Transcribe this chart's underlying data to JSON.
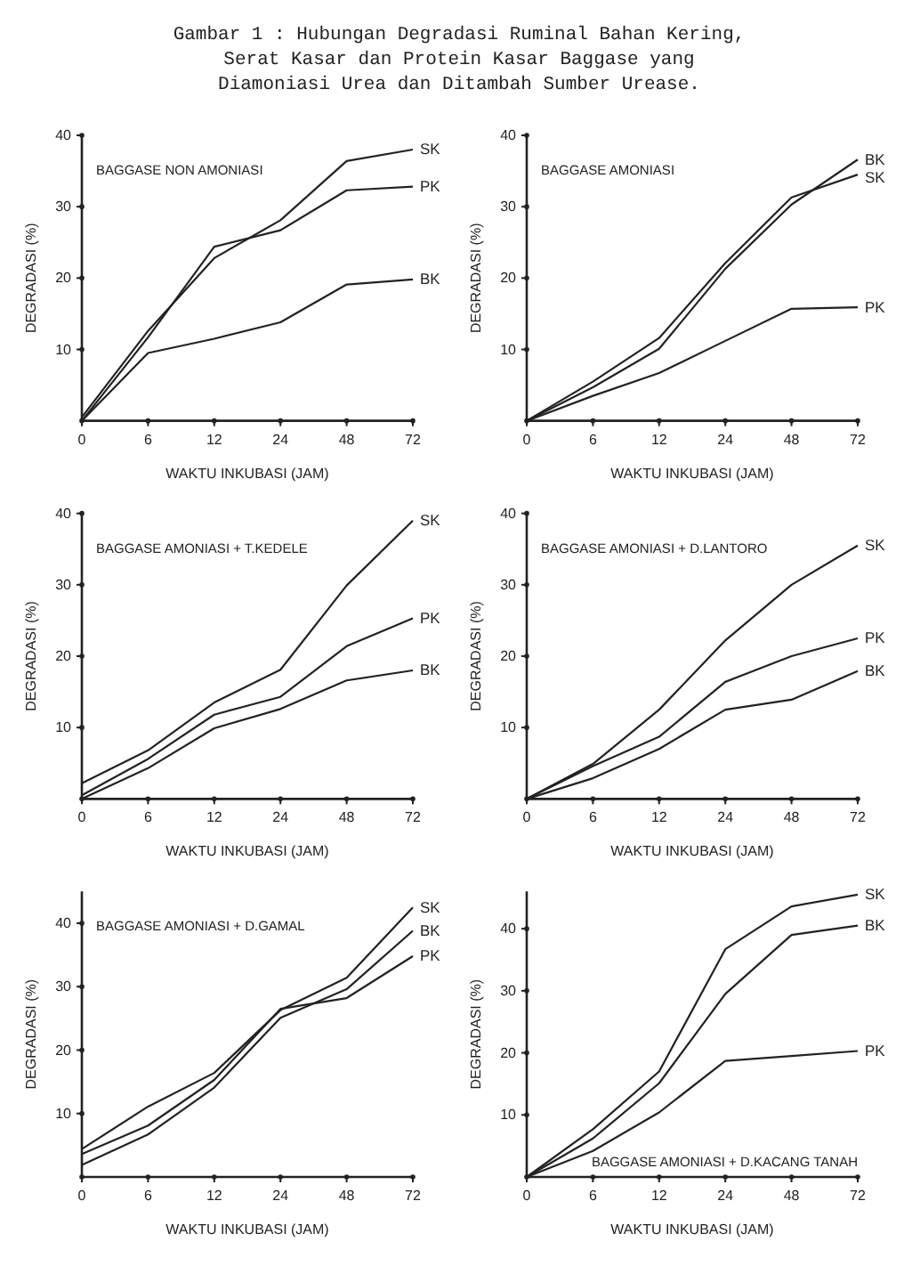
{
  "chart_data": [
    {
      "type": "other",
      "title": "Gambar 1 : Hubungan Degradasi Ruminal Bahan Kering,\nSerat Kasar dan Protein Kasar Baggase yang\nDiamoniasi Urea dan Ditambah Sumber Urease."
    },
    {
      "type": "line",
      "title": "BAGGASE NON AMONIASI",
      "xlabel": "WAKTU INKUBASI (JAM)",
      "ylabel": "DEGRADASI (%)",
      "categories": [
        "0",
        "6",
        "12",
        "24",
        "48",
        "72"
      ],
      "ylim": [
        0,
        40
      ],
      "yticks": [
        10,
        20,
        30,
        40
      ],
      "series": [
        {
          "name": "SK",
          "color": "#222222",
          "values": [
            0.5,
            12.6,
            22.8,
            28.1,
            36.4,
            38
          ]
        },
        {
          "name": "PK",
          "color": "#222222",
          "values": [
            0,
            11.7,
            24.4,
            26.7,
            32.3,
            32.8
          ]
        },
        {
          "name": "BK",
          "color": "#222222",
          "values": [
            0,
            9.5,
            11.5,
            13.8,
            19.1,
            19.8
          ]
        }
      ]
    },
    {
      "type": "line",
      "title": "BAGGASE AMONIASI",
      "xlabel": "WAKTU INKUBASI (JAM)",
      "ylabel": "DEGRADASI (%)",
      "categories": [
        "0",
        "6",
        "12",
        "24",
        "48",
        "72"
      ],
      "ylim": [
        0,
        40
      ],
      "yticks": [
        10,
        20,
        30,
        40
      ],
      "series": [
        {
          "name": "SK",
          "color": "#222222",
          "values": [
            0,
            5.5,
            11.6,
            22.1,
            31.3,
            34.5
          ]
        },
        {
          "name": "BK",
          "color": "#222222",
          "values": [
            0,
            4.7,
            10.1,
            21.3,
            30.3,
            36.6
          ]
        },
        {
          "name": "PK",
          "color": "#222222",
          "values": [
            0,
            3.5,
            6.7,
            11.2,
            15.7,
            15.9
          ]
        }
      ]
    },
    {
      "type": "line",
      "title": "BAGGASE AMONIASI + T.KEDELE",
      "xlabel": "WAKTU INKUBASI (JAM)",
      "ylabel": "DEGRADASI (%)",
      "categories": [
        "0",
        "6",
        "12",
        "24",
        "48",
        "72"
      ],
      "ylim": [
        0,
        40
      ],
      "yticks": [
        10,
        20,
        30,
        40
      ],
      "series": [
        {
          "name": "SK",
          "color": "#222222",
          "values": [
            2.2,
            6.8,
            13.5,
            18.1,
            29.9,
            39
          ]
        },
        {
          "name": "PK",
          "color": "#222222",
          "values": [
            0.5,
            5.6,
            11.8,
            14.3,
            21.4,
            25.3
          ]
        },
        {
          "name": "BK",
          "color": "#222222",
          "values": [
            0,
            4.3,
            9.9,
            12.6,
            16.6,
            18
          ]
        }
      ]
    },
    {
      "type": "line",
      "title": "BAGGASE AMONIASI + D.LANTORO",
      "xlabel": "WAKTU INKUBASI (JAM)",
      "ylabel": "DEGRADASI (%)",
      "categories": [
        "0",
        "6",
        "12",
        "24",
        "48",
        "72"
      ],
      "ylim": [
        0,
        40
      ],
      "yticks": [
        10,
        20,
        30,
        40
      ],
      "series": [
        {
          "name": "SK",
          "color": "#222222",
          "values": [
            0,
            4.9,
            12.5,
            22.2,
            30,
            35.5
          ]
        },
        {
          "name": "PK",
          "color": "#222222",
          "values": [
            0,
            4.6,
            8.7,
            16.4,
            20,
            22.5
          ]
        },
        {
          "name": "BK",
          "color": "#222222",
          "values": [
            0,
            2.9,
            7,
            12.5,
            13.9,
            17.9
          ]
        }
      ]
    },
    {
      "type": "line",
      "title": "BAGGASE AMONIASI + D.GAMAL",
      "xlabel": "WAKTU INKUBASI (JAM)",
      "ylabel": "DEGRADASI (%)",
      "categories": [
        "0",
        "6",
        "12",
        "24",
        "48",
        "72"
      ],
      "ylim": [
        0,
        45
      ],
      "yticks": [
        10,
        20,
        30,
        40
      ],
      "series": [
        {
          "name": "SK",
          "color": "#222222",
          "values": [
            4.4,
            11.1,
            16.4,
            26.3,
            31.4,
            42.5
          ]
        },
        {
          "name": "BK",
          "color": "#222222",
          "values": [
            1.9,
            6.7,
            14.1,
            25.1,
            29.6,
            38.8
          ]
        },
        {
          "name": "PK",
          "color": "#222222",
          "values": [
            3.6,
            8.1,
            15.3,
            26.5,
            28.2,
            34.8
          ]
        }
      ]
    },
    {
      "type": "line",
      "title": "BAGGASE AMONIASI + D.KACANG TANAH",
      "xlabel": "WAKTU INKUBASI (JAM)",
      "ylabel": "DEGRADASI (%)",
      "categories": [
        "0",
        "6",
        "12",
        "24",
        "48",
        "72"
      ],
      "ylim": [
        0,
        46
      ],
      "yticks": [
        10,
        20,
        30,
        40
      ],
      "series": [
        {
          "name": "SK",
          "color": "#222222",
          "values": [
            0,
            7.7,
            17,
            36.7,
            43.6,
            45.5
          ]
        },
        {
          "name": "BK",
          "color": "#222222",
          "values": [
            0,
            6.2,
            15.1,
            29.5,
            39,
            40.5
          ]
        },
        {
          "name": "PK",
          "color": "#222222",
          "values": [
            0,
            4.2,
            10.4,
            18.7,
            19.5,
            20.3
          ]
        }
      ]
    }
  ]
}
